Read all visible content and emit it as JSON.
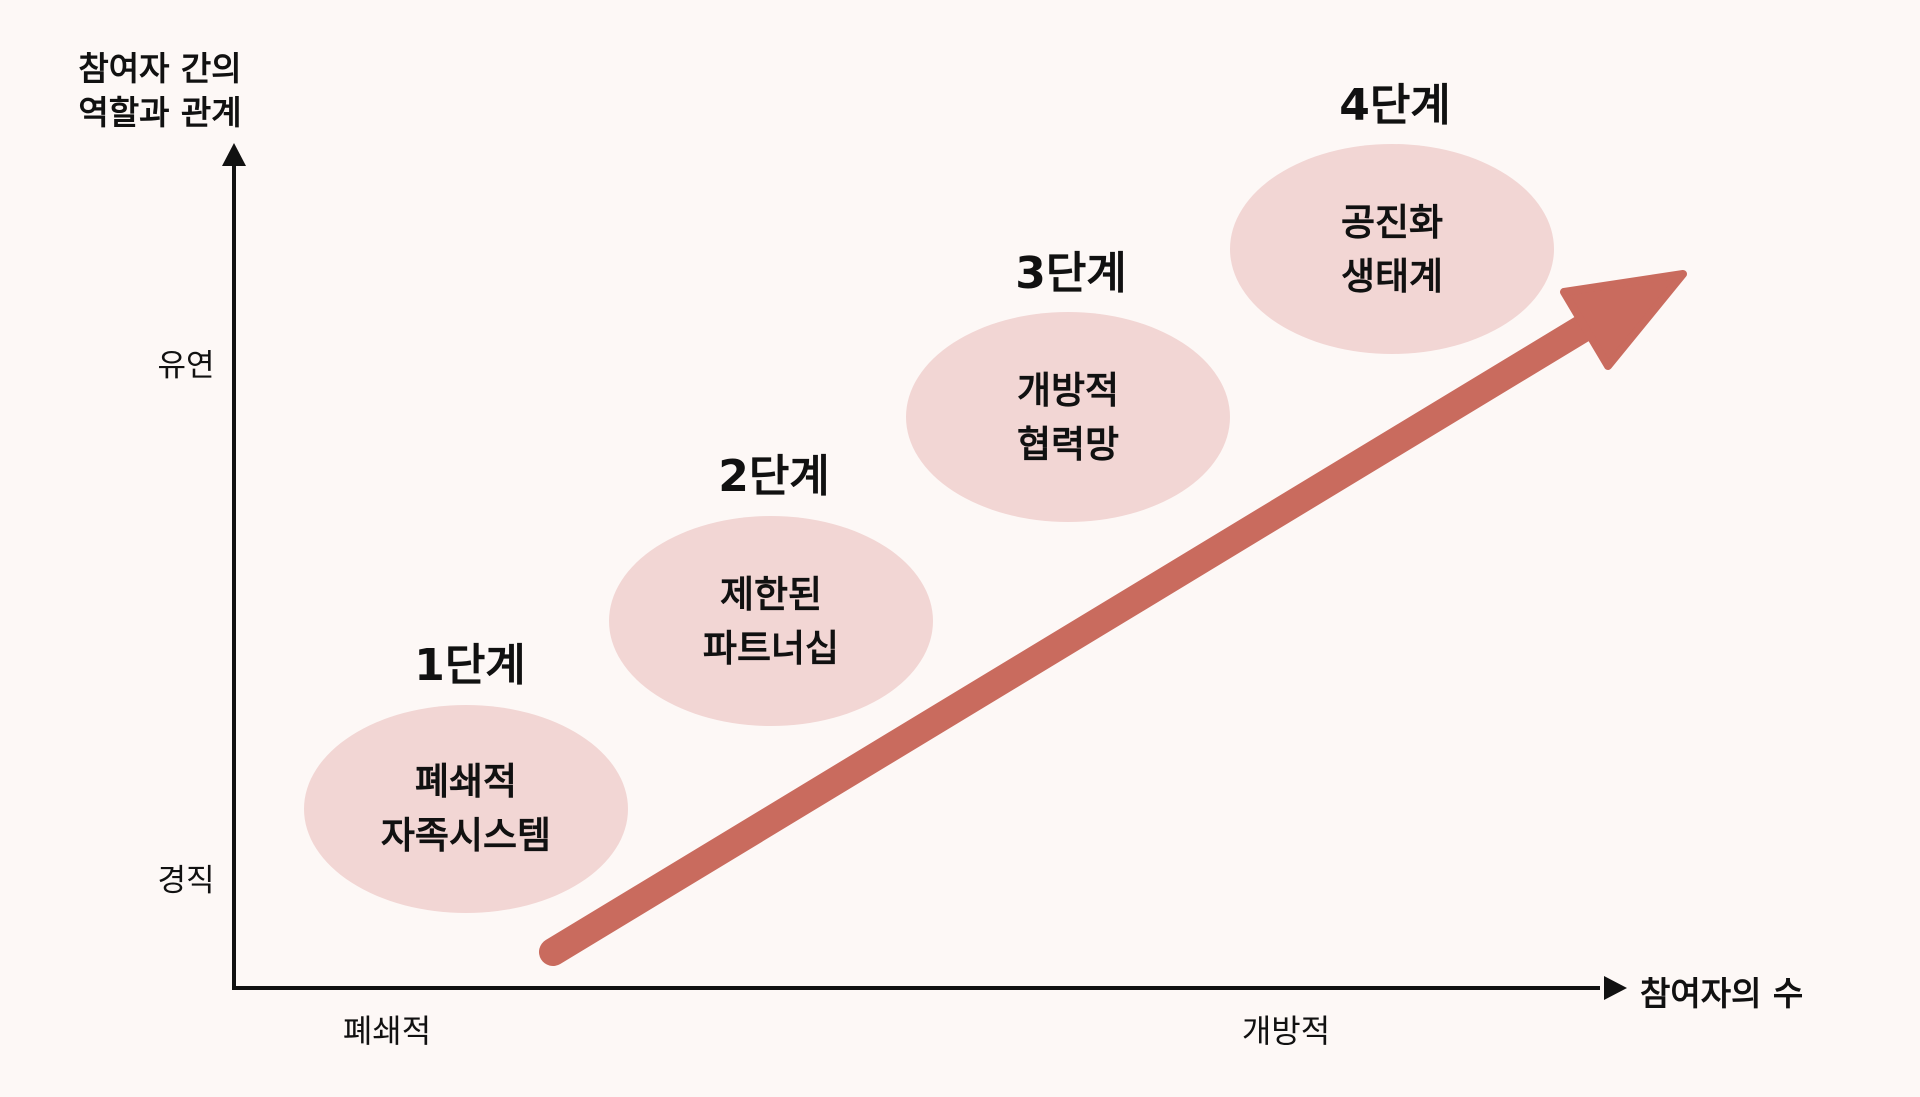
{
  "y_axis": {
    "title_line1": "참여자 간의",
    "title_line2": "역할과 관계",
    "ticks": [
      "유연",
      "경직"
    ]
  },
  "x_axis": {
    "title": "참여자의 수",
    "ticks": [
      "폐쇄적",
      "개방적"
    ]
  },
  "stages": [
    {
      "label": "1단계",
      "line1": "폐쇄적",
      "line2": "자족시스템"
    },
    {
      "label": "2단계",
      "line1": "제한된",
      "line2": "파트너십"
    },
    {
      "label": "3단계",
      "line1": "개방적",
      "line2": "협력망"
    },
    {
      "label": "4단계",
      "line1": "공진화",
      "line2": "생태계"
    }
  ],
  "colors": {
    "background": "#fdf8f6",
    "ellipse_fill": "#f2d6d4",
    "arrow_fill": "#c96b5e",
    "axis": "#111111"
  }
}
